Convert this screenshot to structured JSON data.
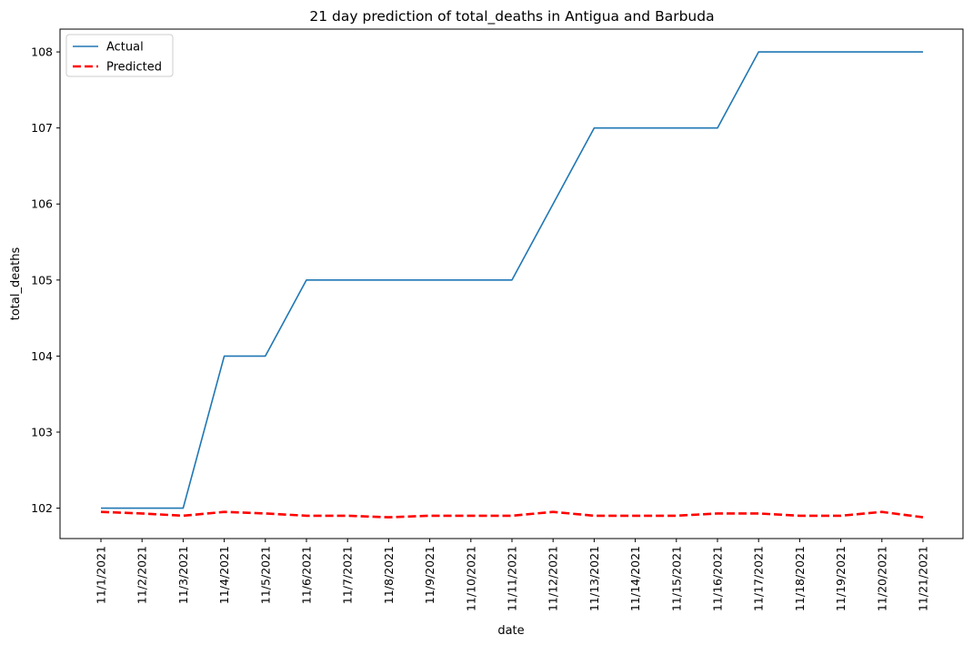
{
  "chart_data": {
    "type": "line",
    "title": "21 day prediction of total_deaths in Antigua and Barbuda",
    "xlabel": "date",
    "ylabel": "total_deaths",
    "categories": [
      "11/1/2021",
      "11/2/2021",
      "11/3/2021",
      "11/4/2021",
      "11/5/2021",
      "11/6/2021",
      "11/7/2021",
      "11/8/2021",
      "11/9/2021",
      "11/10/2021",
      "11/11/2021",
      "11/12/2021",
      "11/13/2021",
      "11/14/2021",
      "11/15/2021",
      "11/16/2021",
      "11/17/2021",
      "11/18/2021",
      "11/19/2021",
      "11/20/2021",
      "11/21/2021"
    ],
    "ylim": [
      101.6,
      108.3
    ],
    "yticks": [
      102,
      103,
      104,
      105,
      106,
      107,
      108
    ],
    "grid": false,
    "legend_position": "top-left",
    "series": [
      {
        "name": "Actual",
        "color": "#1f77b4",
        "style": "solid",
        "values": [
          102,
          102,
          102,
          104,
          104,
          105,
          105,
          105,
          105,
          105,
          105,
          106,
          107,
          107,
          107,
          107,
          108,
          108,
          108,
          108,
          108
        ]
      },
      {
        "name": "Predicted",
        "color": "#ff0000",
        "style": "dashed",
        "values": [
          101.95,
          101.93,
          101.9,
          101.95,
          101.93,
          101.9,
          101.9,
          101.88,
          101.9,
          101.9,
          101.9,
          101.95,
          101.9,
          101.9,
          101.9,
          101.93,
          101.93,
          101.9,
          101.9,
          101.95,
          101.88
        ]
      }
    ]
  }
}
